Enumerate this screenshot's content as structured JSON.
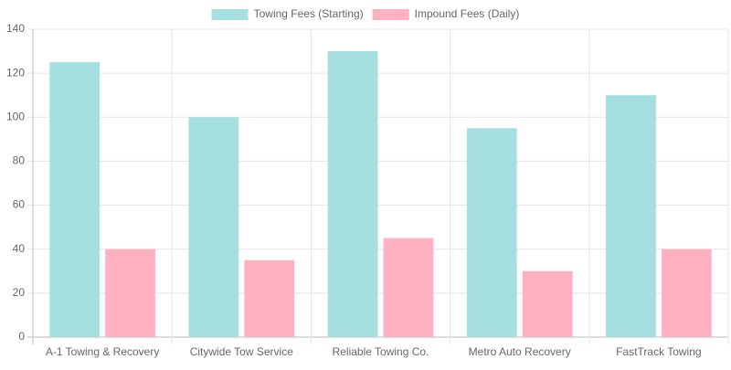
{
  "chart_data": {
    "type": "bar",
    "categories": [
      "A-1 Towing & Recovery",
      "Citywide Tow Service",
      "Reliable Towing Co.",
      "Metro Auto Recovery",
      "FastTrack Towing"
    ],
    "series": [
      {
        "name": "Towing Fees (Starting)",
        "color": "#a5dfdf",
        "values": [
          125,
          100,
          130,
          95,
          110
        ]
      },
      {
        "name": "Impound Fees (Daily)",
        "color": "#ffb1c1",
        "values": [
          40,
          35,
          45,
          30,
          40
        ]
      }
    ],
    "ylim": [
      0,
      140
    ],
    "yticks": [
      0,
      20,
      40,
      60,
      80,
      100,
      120,
      140
    ],
    "grid": true,
    "legend": "top"
  }
}
